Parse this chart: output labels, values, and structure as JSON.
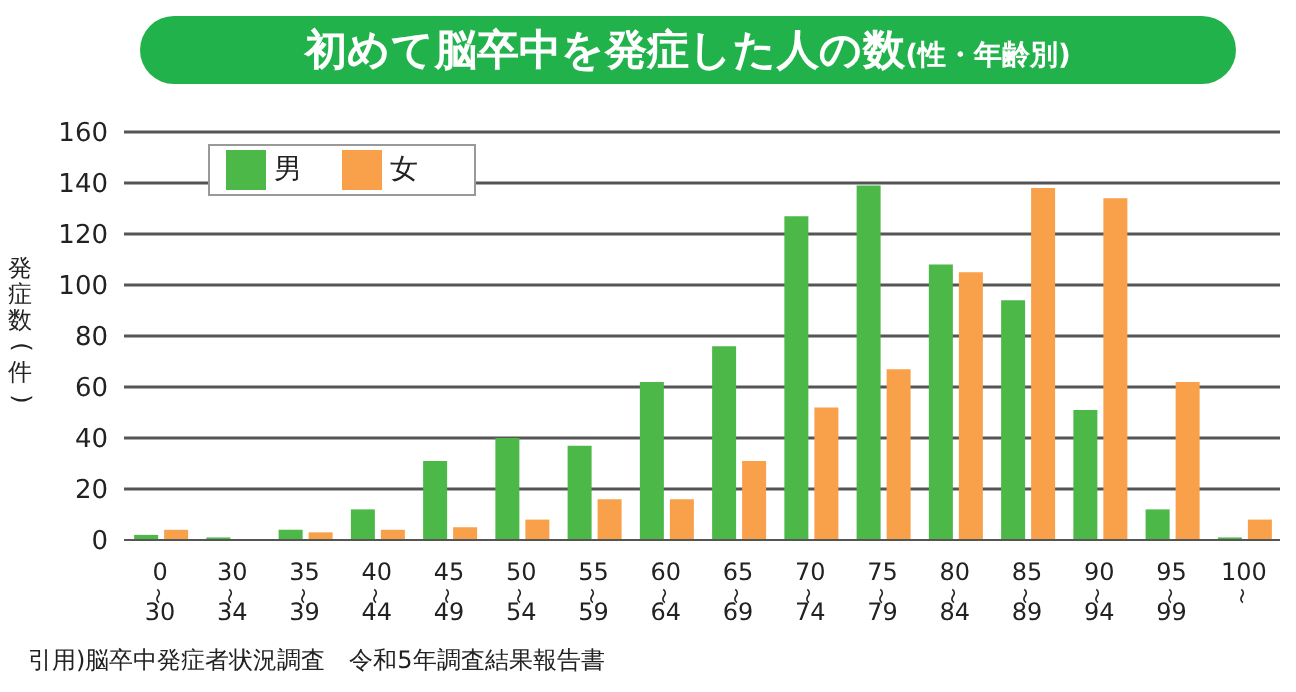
{
  "chart_data": {
    "type": "bar",
    "title": "初めて脳卒中を発症した人の数(性・年齢別)",
    "ylabel": "発症数(件)",
    "categories": [
      "0〜30",
      "30〜34",
      "35〜39",
      "40〜44",
      "45〜49",
      "50〜54",
      "55〜59",
      "60〜64",
      "65〜69",
      "70〜74",
      "75〜79",
      "80〜84",
      "85〜89",
      "90〜94",
      "95〜99",
      "100〜"
    ],
    "series": [
      {
        "name": "男",
        "color": "#4cb848",
        "values": [
          2,
          1,
          4,
          12,
          31,
          40,
          37,
          62,
          76,
          127,
          139,
          108,
          94,
          51,
          12,
          1
        ]
      },
      {
        "name": "女",
        "color": "#f9a04a",
        "values": [
          4,
          0,
          3,
          4,
          5,
          8,
          16,
          16,
          31,
          52,
          67,
          105,
          138,
          134,
          62,
          8
        ]
      }
    ],
    "ylim": [
      0,
      160
    ],
    "yticks": [
      0,
      20,
      40,
      60,
      80,
      100,
      120,
      140,
      160
    ],
    "grid": "y",
    "legend": "top left",
    "annotations": [
      "引用)脳卒中発症者状況調査　令和5年調査結果報告書"
    ]
  }
}
